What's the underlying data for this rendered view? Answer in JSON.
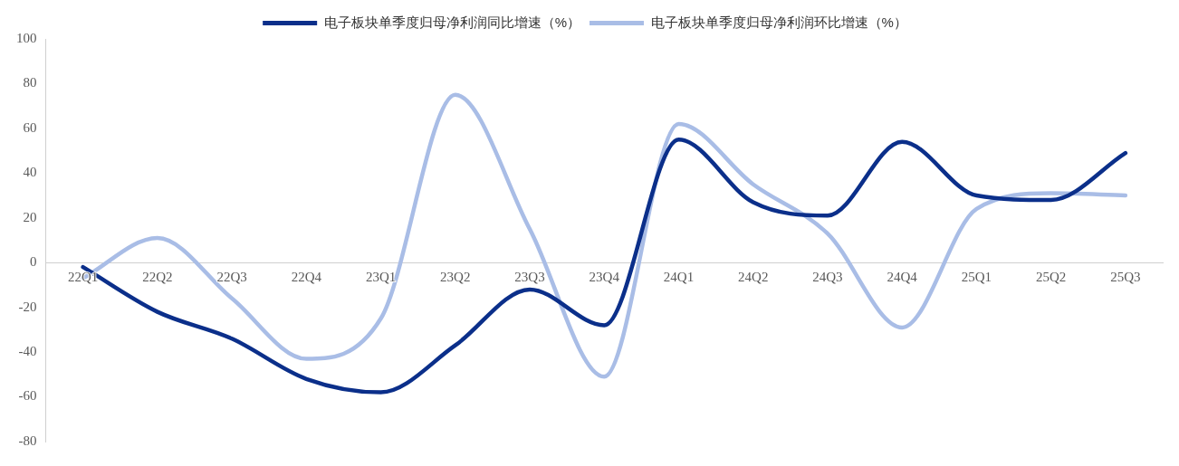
{
  "chart_data": {
    "type": "line",
    "categories": [
      "22Q1",
      "22Q2",
      "22Q3",
      "22Q4",
      "23Q1",
      "23Q2",
      "23Q3",
      "23Q4",
      "24Q1",
      "24Q2",
      "24Q3",
      "24Q4",
      "25Q1",
      "25Q2",
      "25Q3"
    ],
    "series": [
      {
        "name": "电子板块单季度归母净利润同比增速（%）",
        "color": "#0b2f8a",
        "values": [
          -2,
          -22,
          -34,
          -52,
          -58,
          -37,
          -12,
          -28,
          55,
          27,
          21,
          54,
          30,
          28,
          49
        ]
      },
      {
        "name": "电子板块单季度归母净利润环比增速（%）",
        "color": "#a9bde6",
        "values": [
          -7,
          11,
          -16,
          -43,
          -25,
          75,
          15,
          -51,
          62,
          35,
          13,
          -29,
          24,
          31,
          30
        ]
      }
    ],
    "ylim": [
      -80,
      100
    ],
    "yticks": [
      -80,
      -60,
      -40,
      -20,
      0,
      20,
      40,
      60,
      80,
      100
    ],
    "grid": false,
    "legend": "top",
    "marker": "none",
    "line_style": "solid"
  }
}
